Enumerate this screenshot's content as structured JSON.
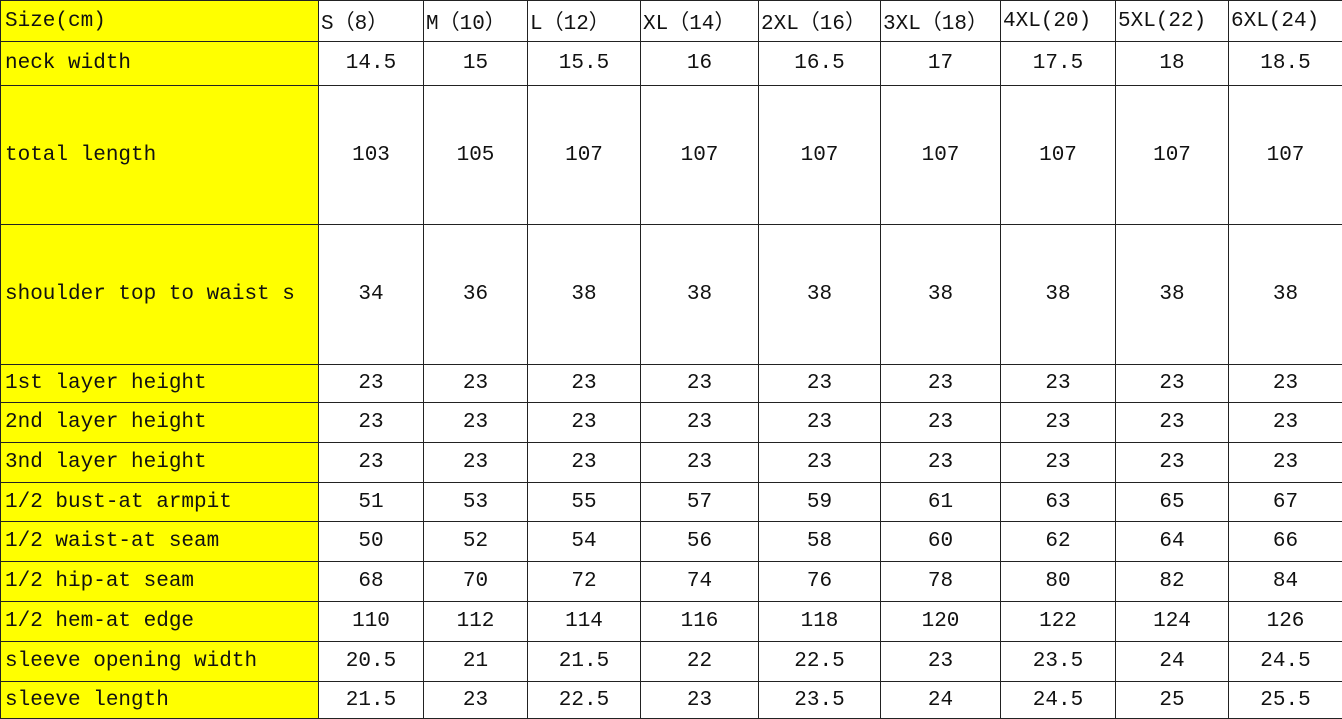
{
  "table": {
    "corner": "Size(cm)",
    "sizes": [
      "S（8）",
      "M（10）",
      "L（12）",
      "XL（14）",
      "2XL（16）",
      "3XL（18）",
      "4XL(20)",
      "5XL(22)",
      "6XL(24)"
    ],
    "rows": [
      {
        "label": "neck width",
        "values": [
          "14.5",
          "15",
          "15.5",
          "16",
          "16.5",
          "17",
          "17.5",
          "18",
          "18.5"
        ]
      },
      {
        "label": "total length",
        "values": [
          "103",
          "105",
          "107",
          "107",
          "107",
          "107",
          "107",
          "107",
          "107"
        ]
      },
      {
        "label": "shoulder top to waist s",
        "values": [
          "34",
          "36",
          "38",
          "38",
          "38",
          "38",
          "38",
          "38",
          "38"
        ]
      },
      {
        "label": "1st layer height",
        "values": [
          "23",
          "23",
          "23",
          "23",
          "23",
          "23",
          "23",
          "23",
          "23"
        ]
      },
      {
        "label": "2nd layer height",
        "values": [
          "23",
          "23",
          "23",
          "23",
          "23",
          "23",
          "23",
          "23",
          "23"
        ]
      },
      {
        "label": "3nd layer height",
        "values": [
          "23",
          "23",
          "23",
          "23",
          "23",
          "23",
          "23",
          "23",
          "23"
        ]
      },
      {
        "label": "1/2 bust-at armpit",
        "values": [
          "51",
          "53",
          "55",
          "57",
          "59",
          "61",
          "63",
          "65",
          "67"
        ]
      },
      {
        "label": "1/2 waist-at seam",
        "values": [
          "50",
          "52",
          "54",
          "56",
          "58",
          "60",
          "62",
          "64",
          "66"
        ]
      },
      {
        "label": "1/2 hip-at seam",
        "values": [
          "68",
          "70",
          "72",
          "74",
          "76",
          "78",
          "80",
          "82",
          "84"
        ]
      },
      {
        "label": "1/2 hem-at edge",
        "values": [
          "110",
          "112",
          "114",
          "116",
          "118",
          "120",
          "122",
          "124",
          "126"
        ]
      },
      {
        "label": "sleeve opening width",
        "values": [
          "20.5",
          "21",
          "21.5",
          "22",
          "22.5",
          "23",
          "23.5",
          "24",
          "24.5"
        ]
      },
      {
        "label": "sleeve length",
        "values": [
          "21.5",
          "23",
          "22.5",
          "23",
          "23.5",
          "24",
          "24.5",
          "25",
          "25.5"
        ]
      }
    ]
  },
  "colors": {
    "label_fill": "#ffff00",
    "grid": "#222222"
  }
}
